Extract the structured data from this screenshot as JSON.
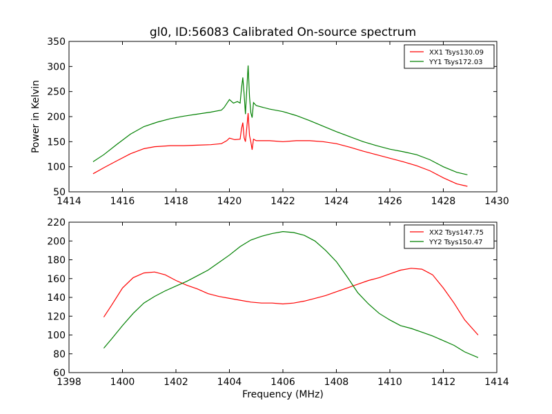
{
  "figure": {
    "title": "gl0, ID:56083 Calibrated On-source spectrum",
    "xlabel": "Frequency (MHz)"
  },
  "chart_data": [
    {
      "type": "line",
      "title": "gl0, ID:56083 Calibrated On-source spectrum",
      "xlabel": "",
      "ylabel": "Power in Kelvin",
      "xlim": [
        1414,
        1430
      ],
      "ylim": [
        50,
        350
      ],
      "xticks": [
        1414,
        1416,
        1418,
        1420,
        1422,
        1424,
        1426,
        1428,
        1430
      ],
      "yticks": [
        50,
        100,
        150,
        200,
        250,
        300,
        350
      ],
      "grid": false,
      "legend": "top-right",
      "series": [
        {
          "name": "XX1 Tsys130.09",
          "color": "#ff0000",
          "points": [
            [
              1414.9,
              86
            ],
            [
              1415.3,
              98
            ],
            [
              1415.8,
              112
            ],
            [
              1416.3,
              126
            ],
            [
              1416.8,
              136
            ],
            [
              1417.2,
              140
            ],
            [
              1417.8,
              142
            ],
            [
              1418.3,
              142
            ],
            [
              1418.8,
              143
            ],
            [
              1419.3,
              144
            ],
            [
              1419.7,
              146
            ],
            [
              1419.9,
              152
            ],
            [
              1420.0,
              157
            ],
            [
              1420.2,
              154
            ],
            [
              1420.4,
              155
            ],
            [
              1420.45,
              175
            ],
            [
              1420.5,
              188
            ],
            [
              1420.55,
              158
            ],
            [
              1420.6,
              150
            ],
            [
              1420.65,
              178
            ],
            [
              1420.7,
              207
            ],
            [
              1420.75,
              162
            ],
            [
              1420.8,
              150
            ],
            [
              1420.85,
              134
            ],
            [
              1420.9,
              155
            ],
            [
              1421.0,
              152
            ],
            [
              1421.5,
              152
            ],
            [
              1422.0,
              150
            ],
            [
              1422.5,
              152
            ],
            [
              1423.0,
              152
            ],
            [
              1423.5,
              150
            ],
            [
              1424.0,
              146
            ],
            [
              1424.5,
              139
            ],
            [
              1425.0,
              131
            ],
            [
              1425.5,
              124
            ],
            [
              1426.0,
              117
            ],
            [
              1426.5,
              110
            ],
            [
              1427.0,
              102
            ],
            [
              1427.5,
              92
            ],
            [
              1428.0,
              78
            ],
            [
              1428.5,
              66
            ],
            [
              1428.9,
              61
            ]
          ]
        },
        {
          "name": "YY1 Tsys172.03",
          "color": "#008000",
          "points": [
            [
              1414.9,
              110
            ],
            [
              1415.3,
              124
            ],
            [
              1415.8,
              145
            ],
            [
              1416.3,
              165
            ],
            [
              1416.8,
              180
            ],
            [
              1417.3,
              189
            ],
            [
              1417.8,
              196
            ],
            [
              1418.3,
              201
            ],
            [
              1418.8,
              205
            ],
            [
              1419.3,
              209
            ],
            [
              1419.7,
              213
            ],
            [
              1419.8,
              218
            ],
            [
              1419.9,
              226
            ],
            [
              1420.0,
              234
            ],
            [
              1420.15,
              227
            ],
            [
              1420.3,
              230
            ],
            [
              1420.4,
              227
            ],
            [
              1420.45,
              255
            ],
            [
              1420.5,
              278
            ],
            [
              1420.55,
              245
            ],
            [
              1420.6,
              205
            ],
            [
              1420.65,
              255
            ],
            [
              1420.7,
              302
            ],
            [
              1420.75,
              240
            ],
            [
              1420.8,
              208
            ],
            [
              1420.85,
              198
            ],
            [
              1420.9,
              228
            ],
            [
              1421.0,
              222
            ],
            [
              1421.5,
              215
            ],
            [
              1422.0,
              210
            ],
            [
              1422.5,
              202
            ],
            [
              1423.0,
              192
            ],
            [
              1423.5,
              181
            ],
            [
              1424.0,
              170
            ],
            [
              1424.5,
              160
            ],
            [
              1425.0,
              150
            ],
            [
              1425.5,
              142
            ],
            [
              1426.0,
              135
            ],
            [
              1426.5,
              130
            ],
            [
              1427.0,
              124
            ],
            [
              1427.5,
              114
            ],
            [
              1428.0,
              100
            ],
            [
              1428.5,
              89
            ],
            [
              1428.9,
              84
            ]
          ]
        }
      ]
    },
    {
      "type": "line",
      "title": "",
      "xlabel": "Frequency (MHz)",
      "ylabel": "",
      "xlim": [
        1398,
        1414
      ],
      "ylim": [
        60,
        220
      ],
      "xticks": [
        1398,
        1400,
        1402,
        1404,
        1406,
        1408,
        1410,
        1412,
        1414
      ],
      "yticks": [
        60,
        80,
        100,
        120,
        140,
        160,
        180,
        200,
        220
      ],
      "grid": false,
      "legend": "top-right",
      "series": [
        {
          "name": "XX2 Tsys147.75",
          "color": "#ff0000",
          "points": [
            [
              1399.3,
              119
            ],
            [
              1399.6,
              132
            ],
            [
              1400.0,
              150
            ],
            [
              1400.4,
              161
            ],
            [
              1400.8,
              166
            ],
            [
              1401.2,
              167
            ],
            [
              1401.6,
              164
            ],
            [
              1402.0,
              158
            ],
            [
              1402.4,
              153
            ],
            [
              1402.8,
              149
            ],
            [
              1403.2,
              144
            ],
            [
              1403.6,
              141
            ],
            [
              1404.0,
              139
            ],
            [
              1404.4,
              137
            ],
            [
              1404.8,
              135
            ],
            [
              1405.2,
              134
            ],
            [
              1405.6,
              134
            ],
            [
              1406.0,
              133
            ],
            [
              1406.4,
              134
            ],
            [
              1406.8,
              136
            ],
            [
              1407.2,
              139
            ],
            [
              1407.6,
              142
            ],
            [
              1408.0,
              146
            ],
            [
              1408.4,
              150
            ],
            [
              1408.8,
              154
            ],
            [
              1409.2,
              158
            ],
            [
              1409.6,
              161
            ],
            [
              1410.0,
              165
            ],
            [
              1410.4,
              169
            ],
            [
              1410.8,
              171
            ],
            [
              1411.2,
              170
            ],
            [
              1411.6,
              164
            ],
            [
              1412.0,
              150
            ],
            [
              1412.4,
              134
            ],
            [
              1412.8,
              116
            ],
            [
              1413.3,
              100
            ]
          ]
        },
        {
          "name": "YY2 Tsys150.47",
          "color": "#008000",
          "points": [
            [
              1399.3,
              86
            ],
            [
              1399.6,
              96
            ],
            [
              1400.0,
              110
            ],
            [
              1400.4,
              123
            ],
            [
              1400.8,
              134
            ],
            [
              1401.2,
              141
            ],
            [
              1401.6,
              147
            ],
            [
              1402.0,
              152
            ],
            [
              1402.4,
              157
            ],
            [
              1402.8,
              163
            ],
            [
              1403.2,
              169
            ],
            [
              1403.6,
              177
            ],
            [
              1404.0,
              185
            ],
            [
              1404.4,
              194
            ],
            [
              1404.8,
              201
            ],
            [
              1405.2,
              205
            ],
            [
              1405.6,
              208
            ],
            [
              1406.0,
              210
            ],
            [
              1406.4,
              209
            ],
            [
              1406.8,
              206
            ],
            [
              1407.2,
              200
            ],
            [
              1407.6,
              190
            ],
            [
              1408.0,
              178
            ],
            [
              1408.4,
              162
            ],
            [
              1408.8,
              145
            ],
            [
              1409.2,
              133
            ],
            [
              1409.6,
              123
            ],
            [
              1410.0,
              116
            ],
            [
              1410.4,
              110
            ],
            [
              1410.8,
              107
            ],
            [
              1411.2,
              103
            ],
            [
              1411.6,
              99
            ],
            [
              1412.0,
              94
            ],
            [
              1412.4,
              89
            ],
            [
              1412.8,
              82
            ],
            [
              1413.3,
              76
            ]
          ]
        }
      ]
    }
  ]
}
